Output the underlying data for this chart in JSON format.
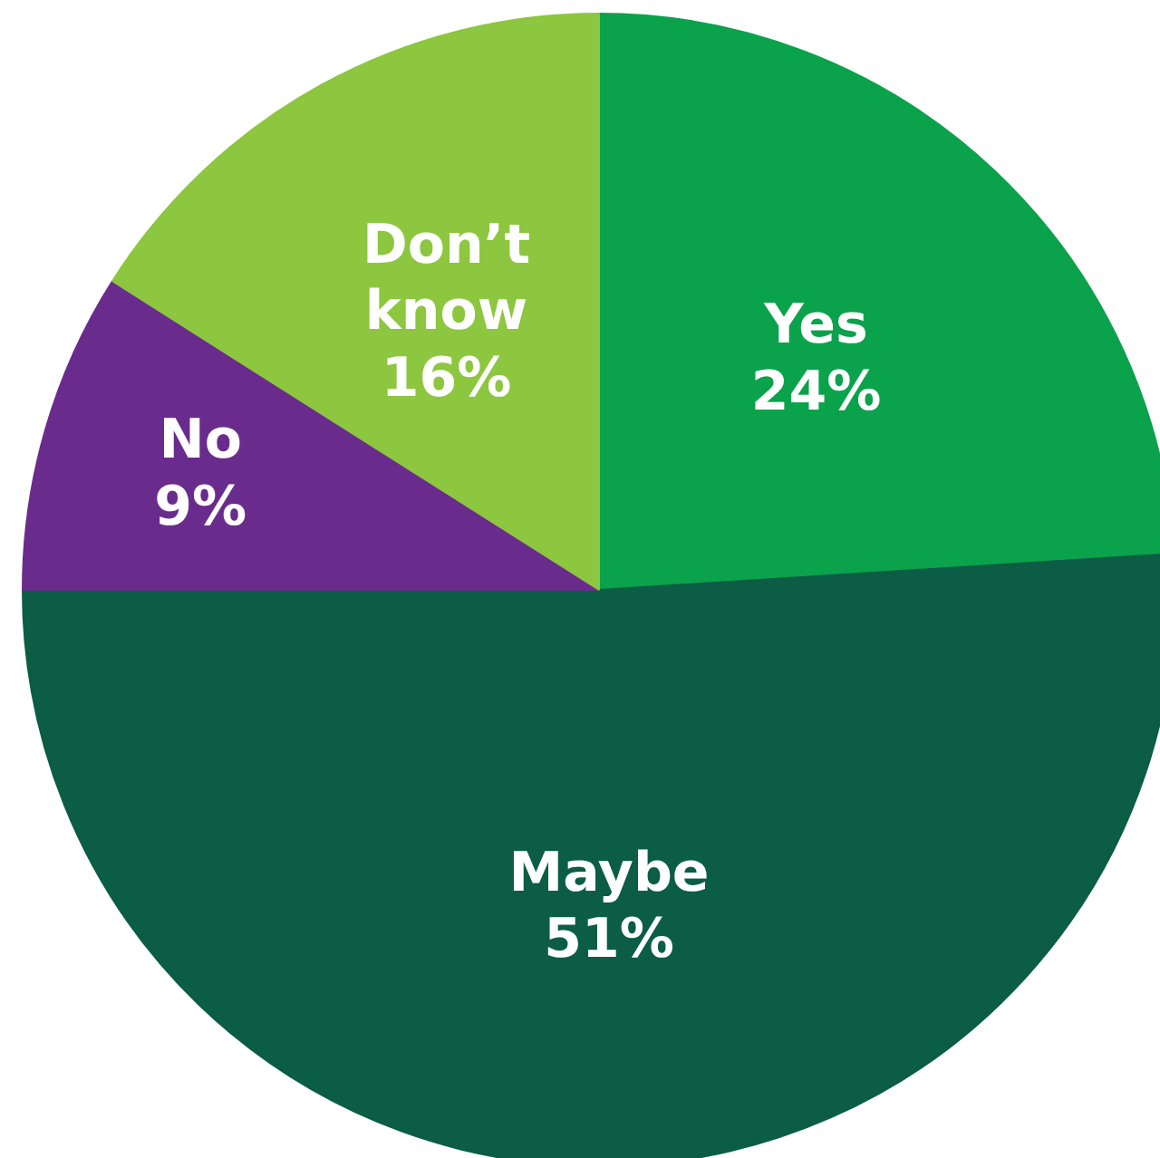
{
  "chart_data": {
    "type": "pie",
    "categories": [
      "Yes",
      "Maybe",
      "No",
      "Don’t know"
    ],
    "values": [
      24,
      51,
      9,
      16
    ],
    "value_labels": [
      "24%",
      "51%",
      "9%",
      "16%"
    ],
    "colors": [
      "#0ba24c",
      "#0b5d45",
      "#6a2c8c",
      "#8dc63f"
    ]
  }
}
